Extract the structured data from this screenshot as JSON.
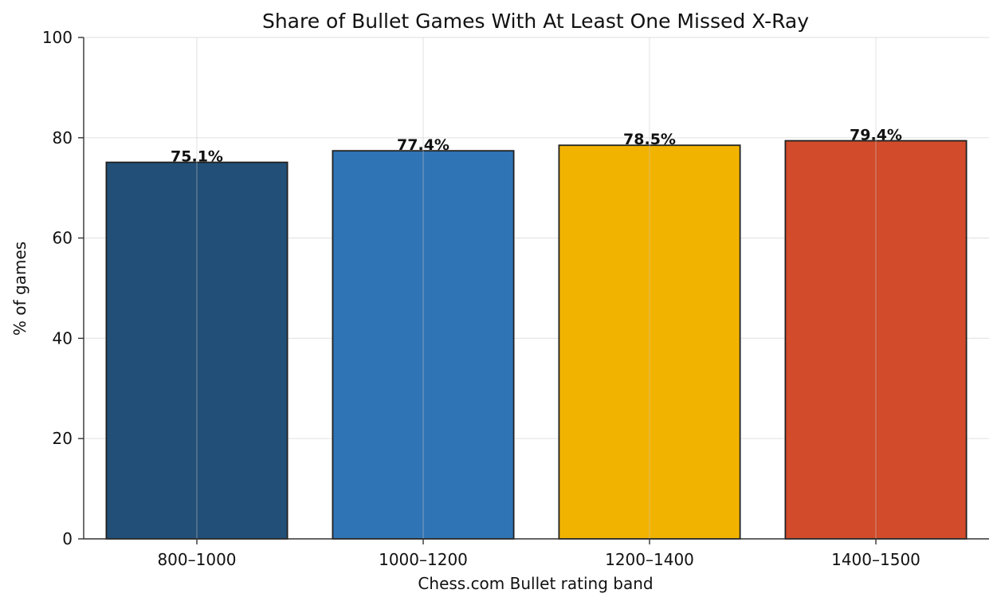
{
  "chart_data": {
    "type": "bar",
    "title": "Share of Bullet Games With At Least One Missed X-Ray",
    "xlabel": "Chess.com Bullet rating band",
    "ylabel": "% of games",
    "categories": [
      "800–1000",
      "1000–1200",
      "1200–1400",
      "1400–1500"
    ],
    "values": [
      75.1,
      77.4,
      78.5,
      79.4
    ],
    "value_labels": [
      "75.1%",
      "77.4%",
      "78.5%",
      "79.4%"
    ],
    "colors": [
      "#214f77",
      "#2f74b5",
      "#f2b300",
      "#d24b2b"
    ],
    "edge_color": "#222222",
    "ylim": [
      0,
      100
    ],
    "yticks": [
      0,
      20,
      40,
      60,
      80,
      100
    ],
    "grid": true,
    "legend": false
  }
}
